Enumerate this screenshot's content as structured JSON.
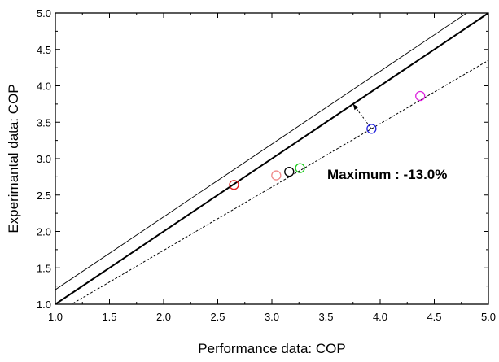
{
  "chart_data": {
    "type": "scatter",
    "title": "",
    "xlabel": "Performance data: COP",
    "ylabel": "Experimantal data: COP",
    "xlim": [
      1.0,
      5.0
    ],
    "ylim": [
      1.0,
      5.0
    ],
    "xticks": [
      "1.0",
      "1.5",
      "2.0",
      "2.5",
      "3.0",
      "3.5",
      "4.0",
      "4.5",
      "5.0"
    ],
    "yticks": [
      "1.0",
      "1.5",
      "2.0",
      "2.5",
      "3.0",
      "3.5",
      "4.0",
      "4.5",
      "5.0"
    ],
    "grid": false,
    "legend": "none",
    "points": [
      {
        "x": 2.65,
        "y": 2.64,
        "color": "#e02020"
      },
      {
        "x": 3.04,
        "y": 2.77,
        "color": "#f08a8a"
      },
      {
        "x": 3.16,
        "y": 2.82,
        "color": "#000000"
      },
      {
        "x": 3.26,
        "y": 2.87,
        "color": "#22cc22"
      },
      {
        "x": 3.92,
        "y": 3.41,
        "color": "#2222dd"
      },
      {
        "x": 4.37,
        "y": 3.86,
        "color": "#dd22dd"
      }
    ],
    "lines": [
      {
        "style": "thin",
        "slope": 1.0,
        "intercept": 0.2
      },
      {
        "style": "thick",
        "slope": 1.0,
        "intercept": 0.0
      },
      {
        "style": "dashed",
        "slope": 0.87,
        "intercept": 0.0
      }
    ],
    "annotation": {
      "text": "Maximum : -13.0%"
    },
    "arrow": {
      "from": [
        3.92,
        3.41
      ],
      "to": [
        3.75,
        3.75
      ]
    }
  }
}
